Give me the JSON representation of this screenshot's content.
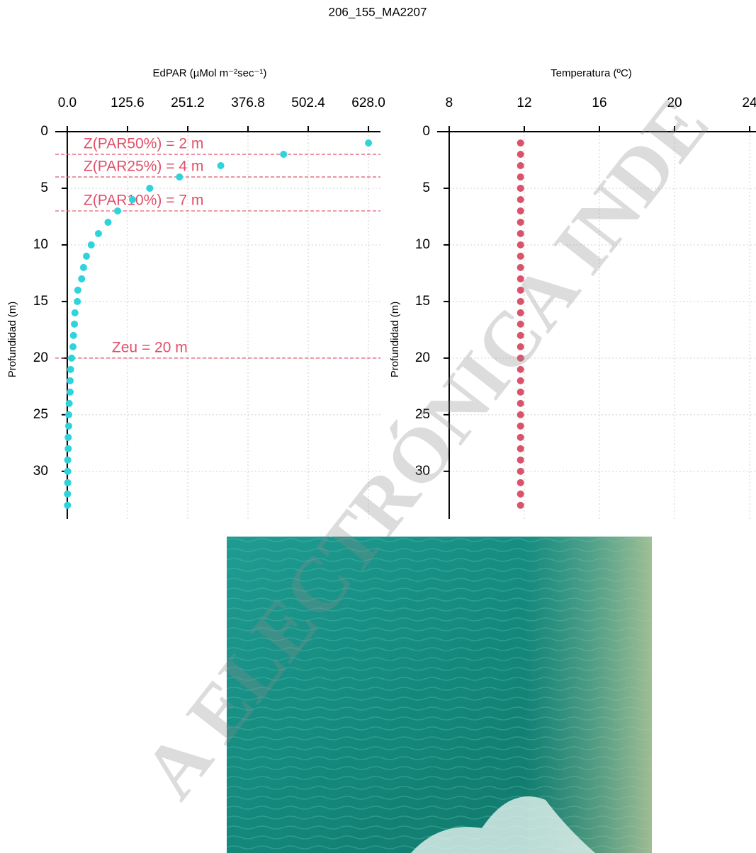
{
  "title": "206_155_MA2207",
  "watermark": "A ELECTRÓNICA INDE",
  "chart_data": [
    {
      "type": "scatter",
      "x_label": "EdPAR  (µMol m⁻²sec⁻¹)",
      "y_label": "Profundidad (m)",
      "color": "#2ed3dc",
      "x": [
        628,
        451,
        320,
        234,
        172,
        136,
        105,
        85,
        65,
        50,
        40,
        34,
        30,
        22,
        21,
        16,
        15,
        13,
        12,
        9,
        7,
        6,
        6,
        4,
        3,
        3,
        2,
        2,
        1,
        1,
        1,
        0.5,
        0.5
      ],
      "y": [
        1,
        2,
        3,
        4,
        5,
        6,
        7,
        8,
        9,
        10,
        11,
        12,
        13,
        14,
        15,
        16,
        17,
        18,
        19,
        20,
        21,
        22,
        23,
        24,
        25,
        26,
        27,
        28,
        29,
        30,
        31,
        32,
        33
      ],
      "xlim": [
        -25,
        653
      ],
      "xticks": [
        {
          "value": 0,
          "label": "0.0"
        },
        125.6,
        251.2,
        376.8,
        502.4,
        {
          "value": 628,
          "label": "628.0"
        }
      ],
      "ylim": [
        34.2,
        0
      ],
      "yticks": [
        0,
        5,
        10,
        15,
        20,
        25,
        30
      ],
      "grid": true,
      "hline_color": "#e0506a",
      "hlines": [
        {
          "value": 2,
          "label": "Z(PAR50%) = 2 m"
        },
        {
          "value": 4,
          "label": "Z(PAR25%) = 4 m"
        },
        {
          "value": 7,
          "label": "Z(PAR10%) = 7 m"
        },
        {
          "value": 20,
          "label": "Zeu = 20 m"
        }
      ]
    },
    {
      "type": "scatter",
      "x_label": "Temperatura  (ºC)",
      "y_label": "Profundidad (m)",
      "color": "#d9536a",
      "x": [
        11.8,
        11.8,
        11.8,
        11.8,
        11.8,
        11.8,
        11.8,
        11.8,
        11.8,
        11.8,
        11.8,
        11.8,
        11.8,
        11.8,
        11.8,
        11.8,
        11.8,
        11.8,
        11.8,
        11.8,
        11.8,
        11.8,
        11.8,
        11.8,
        11.8,
        11.8,
        11.8,
        11.8,
        11.8,
        11.8,
        11.8,
        11.8,
        11.8
      ],
      "y": [
        1,
        2,
        3,
        4,
        5,
        6,
        7,
        8,
        9,
        10,
        11,
        12,
        13,
        14,
        15,
        16,
        17,
        18,
        19,
        20,
        21,
        22,
        23,
        24,
        25,
        26,
        27,
        28,
        29,
        30,
        31,
        32,
        33
      ],
      "xlim": [
        7.36,
        24.64
      ],
      "xticks": [
        8,
        12,
        16,
        20,
        24
      ],
      "ylim": [
        34.2,
        0
      ],
      "yticks": [
        0,
        5,
        10,
        15,
        20,
        25,
        30
      ],
      "grid": true
    }
  ]
}
